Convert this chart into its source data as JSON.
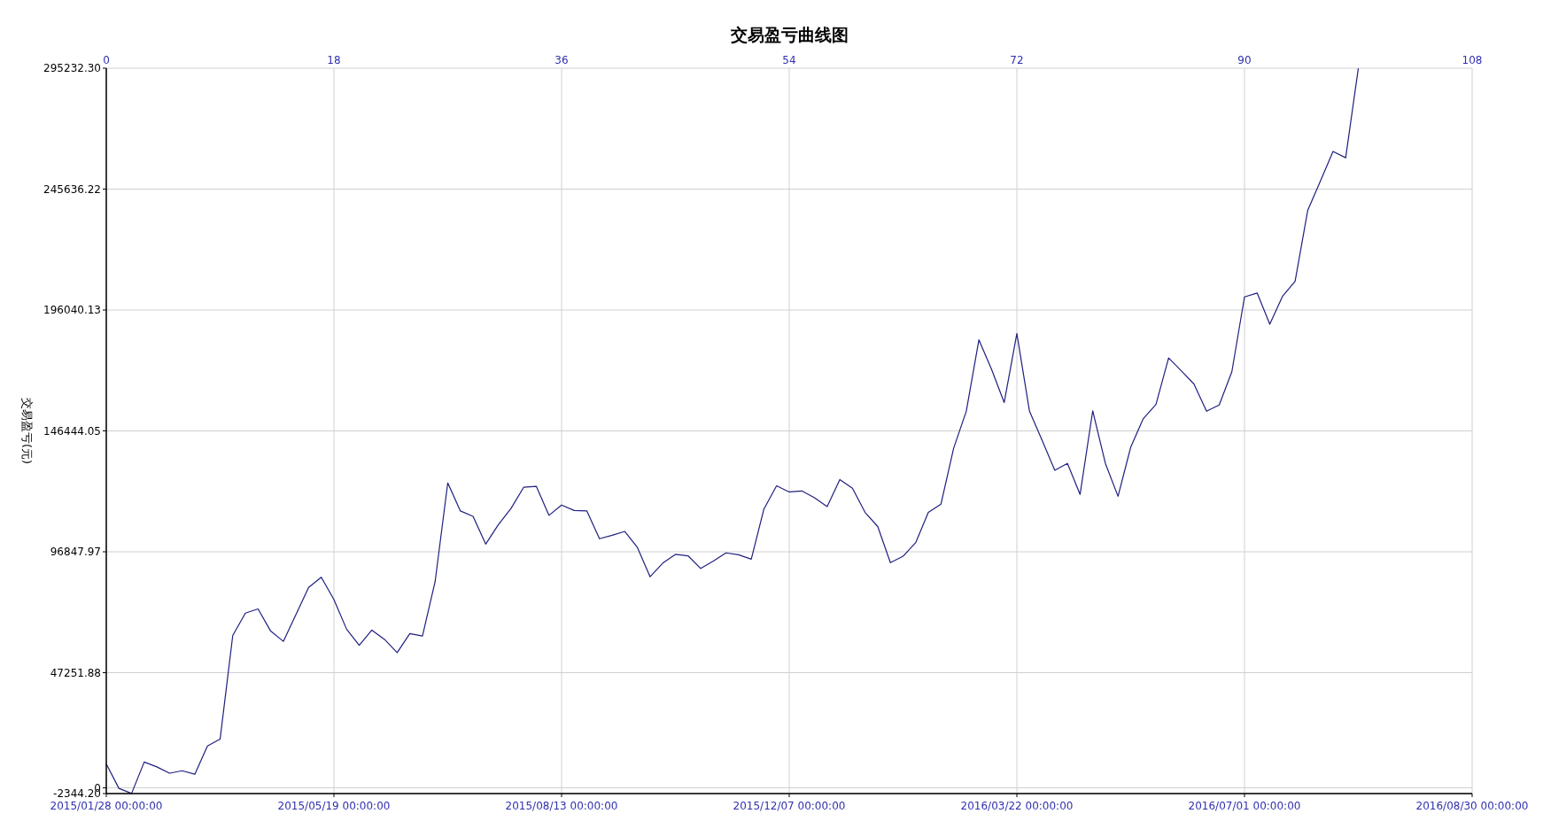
{
  "chart_data": {
    "type": "line",
    "title": "交易盈亏曲线图",
    "ylabel": "交易盈亏(元)",
    "categories": [
      "2015/01/28 00:00:00",
      null,
      null,
      null,
      null,
      null,
      null,
      null,
      null,
      null,
      null,
      null,
      null,
      null,
      null,
      null,
      null,
      null,
      "2015/05/19 00:00:00",
      null,
      null,
      null,
      null,
      null,
      null,
      null,
      null,
      null,
      null,
      null,
      null,
      null,
      null,
      null,
      null,
      null,
      "2015/08/13 00:00:00",
      null,
      null,
      null,
      null,
      null,
      null,
      null,
      null,
      null,
      null,
      null,
      null,
      null,
      null,
      null,
      null,
      null,
      "2015/12/07 00:00:00",
      null,
      null,
      null,
      null,
      null,
      null,
      null,
      null,
      null,
      null,
      null,
      null,
      null,
      null,
      null,
      null,
      null,
      "2016/03/22 00:00:00",
      null,
      null,
      null,
      null,
      null,
      null,
      null,
      null,
      null,
      null,
      null,
      null,
      null,
      null,
      null,
      null,
      null,
      "2016/07/01 00:00:00",
      null,
      null,
      null,
      null,
      null,
      null,
      null,
      null,
      null,
      null,
      null,
      null,
      null,
      null,
      null,
      null,
      null,
      "2016/08/30 00:00:00"
    ],
    "series": [
      {
        "color": "#1f1f80",
        "values": [
          9800,
          -200,
          -2300,
          10600,
          8600,
          6000,
          7000,
          5600,
          17200,
          20000,
          62500,
          71700,
          73400,
          64300,
          60100,
          71100,
          82200,
          86400,
          77200,
          65100,
          58500,
          64700,
          60900,
          55500,
          63300,
          62300,
          84600,
          125100,
          113600,
          111400,
          100000,
          108000,
          114600,
          123300,
          123700,
          111800,
          116000,
          113800,
          113600,
          102200,
          103600,
          105200,
          98600,
          86600,
          92200,
          95800,
          95200,
          90000,
          93000,
          96400,
          95600,
          93800,
          114400,
          123900,
          121400,
          121800,
          119000,
          115400,
          126500,
          122900,
          113000,
          107200,
          92400,
          95000,
          100600,
          113000,
          116400,
          139300,
          154500,
          183800,
          171700,
          158100,
          186400,
          154500,
          142500,
          130300,
          133100,
          120400,
          154700,
          133100,
          119600,
          139700,
          151500,
          157300,
          176400,
          171100,
          165700,
          154500,
          157100,
          170700,
          201400,
          203000,
          190200,
          201600,
          207800,
          236900,
          248900,
          261100,
          258500,
          295200,
          null,
          null,
          null,
          null,
          null,
          null,
          null,
          null,
          null
        ]
      }
    ],
    "x2lim": [
      0,
      108
    ],
    "x2ticks": [
      0,
      18,
      36,
      54,
      72,
      90,
      108
    ],
    "ylim": [
      -2344.2,
      295232.3
    ],
    "yticks": [
      {
        "value": -2344.2,
        "label": "-2344.20"
      },
      0,
      {
        "value": 47251.88,
        "label": "47251.88"
      },
      {
        "value": 96847.97,
        "label": "96847.97"
      },
      {
        "value": 146444.05,
        "label": "146444.05"
      },
      {
        "value": 196040.13,
        "label": "196040.13"
      },
      {
        "value": 245636.22,
        "label": "245636.22"
      },
      {
        "value": 295232.3,
        "label": "295232.30"
      }
    ],
    "grid": true
  }
}
